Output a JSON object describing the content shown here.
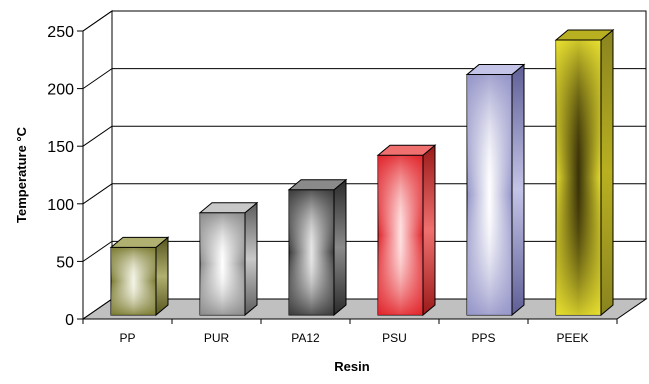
{
  "chart_data": {
    "type": "bar",
    "title": "",
    "xlabel": "Resin",
    "ylabel": "Temperature °C",
    "ylim": [
      0,
      250
    ],
    "yticks": [
      0,
      50,
      100,
      150,
      200,
      250
    ],
    "grid": true,
    "legend": "none",
    "categories": [
      "PP",
      "PUR",
      "PA12",
      "PSU",
      "PPS",
      "PEEK"
    ],
    "values": [
      70,
      100,
      120,
      150,
      220,
      250
    ],
    "colors": [
      "#8a8a3a",
      "#9a9a9a",
      "#555555",
      "#e0242a",
      "#9c9ccc",
      "#e6dc28"
    ],
    "shades": [
      {
        "front": "#7a7a30",
        "light": "#f4f4e6",
        "side": "#55551e",
        "top": "#b0b070"
      },
      {
        "front": "#8a8a8a",
        "light": "#ffffff",
        "side": "#5c5c5c",
        "top": "#c8c8c8"
      },
      {
        "front": "#3a3a3a",
        "light": "#e6e6e6",
        "side": "#2a2a2a",
        "top": "#8a8a8a"
      },
      {
        "front": "#e0242a",
        "light": "#ffe0e0",
        "side": "#9a1a1a",
        "top": "#f07070"
      },
      {
        "front": "#9494c8",
        "light": "#ffffff",
        "side": "#5e5e96",
        "top": "#c4c4e8"
      },
      {
        "front": "#e8e030",
        "light": "#3a3208",
        "side": "#8a8420",
        "top": "#b8b020"
      }
    ]
  }
}
